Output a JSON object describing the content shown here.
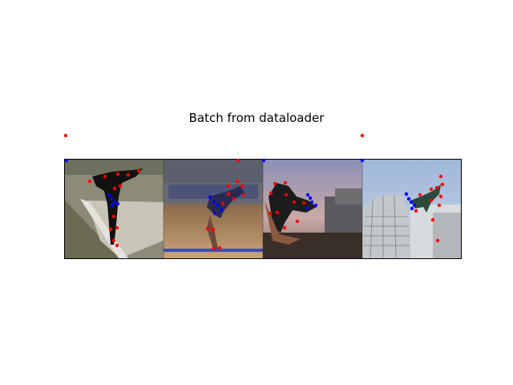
{
  "figure": {
    "title": "Batch from dataloader"
  },
  "colors": {
    "left_keypoint": "#ff0000",
    "right_keypoint": "#0000ff",
    "border": "#000000"
  },
  "panels": [
    {
      "name": "panel-1",
      "scene": "athlete performing a leap on a sloped concrete ramp"
    },
    {
      "name": "panel-2",
      "scene": "player jumping in an indoor gymnasium"
    },
    {
      "name": "panel-3",
      "scene": "skateboarder crouched mid-air against a sunset sky"
    },
    {
      "name": "panel-4",
      "scene": "person jumping in front of a glass dome building"
    }
  ]
}
